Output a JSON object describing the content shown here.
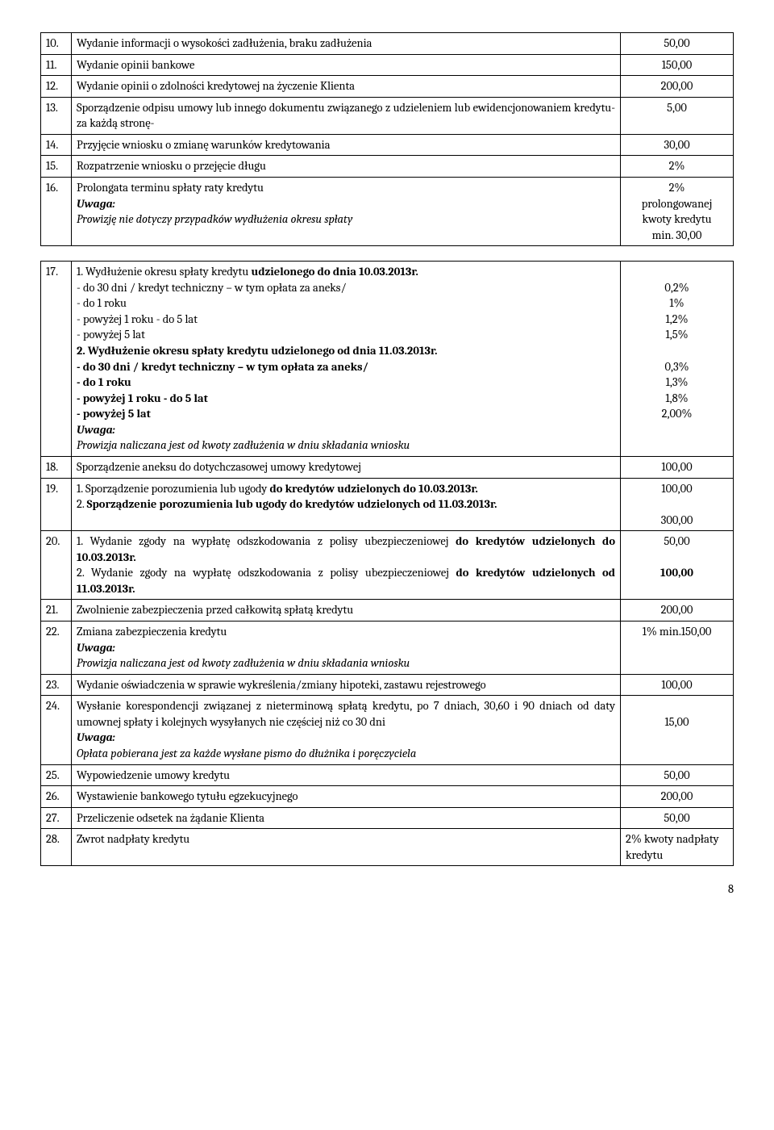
{
  "rows_a": [
    {
      "n": "10.",
      "d": "Wydanie informacji o wysokości zadłużenia, braku zadłużenia",
      "v": "50,00"
    },
    {
      "n": "11.",
      "d": "Wydanie opinii bankowe",
      "v": "150,00"
    },
    {
      "n": "12.",
      "d": "Wydanie opinii o zdolności kredytowej na życzenie Klienta",
      "v": "200,00"
    },
    {
      "n": "13.",
      "d": "Sporządzenie odpisu umowy lub innego dokumentu związanego z udzieleniem lub ewidencjonowaniem kredytu- za każdą stronę-",
      "v": "5,00"
    },
    {
      "n": "14.",
      "d": "Przyjęcie wniosku o zmianę warunków kredytowania",
      "v": "30,00"
    },
    {
      "n": "15.",
      "d": "Rozpatrzenie wniosku o przejęcie długu",
      "v": "2%"
    }
  ],
  "row16": {
    "n": "16.",
    "d1": "Prolongata terminu spłaty raty kredytu",
    "d2": "Uwaga:",
    "d3": "Prowizję nie dotyczy przypadków wydłużenia okresu spłaty",
    "v": "2%\nprolongowanej\nkwoty kredytu\nmin. 30,00"
  },
  "row17": {
    "n": "17.",
    "h1": "1. Wydłużenie okresu spłaty kredytu ",
    "h1b": "udzielonego do dnia 10.03.2013r.",
    "l1": "- do 30 dni / kredyt techniczny – w tym opłata za aneks/",
    "l2": "- do 1 roku",
    "l3": "- powyżej 1 roku - do 5 lat",
    "l4": "- powyżej 5 lat",
    "h2": "2. Wydłużenie okresu spłaty kredytu udzielonego od dnia 11.03.2013r.",
    "l5": "- do 30 dni / kredyt techniczny – w tym opłata za aneks/",
    "l6": "- do 1 roku",
    "l7": "- powyżej 1 roku - do 5 lat",
    "l8": "- powyżej 5 lat",
    "u": "Uwaga:",
    "u2": "Prowizja naliczana jest od kwoty zadłużenia w dniu składania wniosku",
    "v": "\n0,2%\n1%\n1,2%\n1,5%\n\n0,3%\n1,3%\n1,8%\n2,00%"
  },
  "row18": {
    "n": "18.",
    "d": "Sporządzenie aneksu do dotychczasowej umowy kredytowej",
    "v": "100,00"
  },
  "row19": {
    "n": "19.",
    "p1a": "1. Sporządzenie porozumienia lub ugody ",
    "p1b": "do kredytów udzielonych do 10.03.2013r.",
    "p2a": "2. ",
    "p2b": "Sporządzenie porozumienia lub ugody do kredytów udzielonych od 11.03.2013r.",
    "v": "100,00\n\n300,00"
  },
  "row20": {
    "n": "20.",
    "p1a": "1. Wydanie zgody na wypłatę odszkodowania z polisy ubezpieczeniowej ",
    "p1b": "do kredytów udzielonych do 10.03.2013r.",
    "p2a": "2. Wydanie zgody na wypłatę odszkodowania z polisy ubezpieczeniowej ",
    "p2b": "do kredytów udzielonych od 11.03.2013r.",
    "v1": "50,00",
    "v2": "100,00"
  },
  "row21": {
    "n": "21.",
    "d": "Zwolnienie zabezpieczenia przed całkowitą spłatą kredytu",
    "v": "200,00"
  },
  "row22": {
    "n": "22.",
    "d1": "Zmiana zabezpieczenia kredytu",
    "u": "Uwaga:",
    "u2": "Prowizja naliczana jest od kwoty zadłużenia w dniu składania wniosku",
    "v": "1% min.150,00"
  },
  "row23": {
    "n": "23.",
    "d": "Wydanie oświadczenia w sprawie wykreślenia/zmiany hipoteki, zastawu rejestrowego",
    "v": "100,00"
  },
  "row24": {
    "n": "24.",
    "d1": "Wysłanie korespondencji związanej z nieterminową spłatą kredytu, po 7 dniach, 30,60 i 90 dniach od daty umownej spłaty i kolejnych wysyłanych nie częściej niż co 30 dni",
    "u": "Uwaga:",
    "u2": "Opłata pobierana jest za każde wysłane pismo do dłużnika i poręczyciela",
    "v": "\n15,00"
  },
  "row25": {
    "n": "25.",
    "d": "Wypowiedzenie umowy kredytu",
    "v": "50,00"
  },
  "row26": {
    "n": "26.",
    "d": "Wystawienie bankowego tytułu egzekucyjnego",
    "v": "200,00"
  },
  "row27": {
    "n": "27.",
    "d": "Przeliczenie odsetek na żądanie Klienta",
    "v": "50,00"
  },
  "row28": {
    "n": "28.",
    "d": "Zwrot nadpłaty kredytu",
    "v": "2% kwoty nadpłaty kredytu"
  },
  "page": "8"
}
